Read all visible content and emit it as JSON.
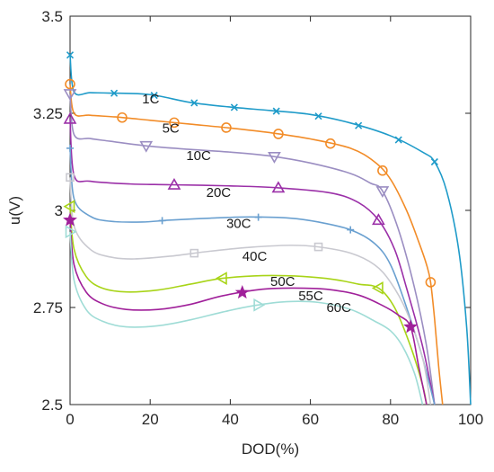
{
  "chart_data": {
    "type": "line",
    "xlabel": "DOD(%)",
    "ylabel": "u(V)",
    "xlim": [
      0,
      100
    ],
    "ylim": [
      2.5,
      3.5
    ],
    "xticks": [
      "0",
      "20",
      "40",
      "60",
      "80",
      "100"
    ],
    "yticks": [
      "2.5",
      "2.75",
      "3",
      "3.25",
      "3.5"
    ],
    "grid": false,
    "series": [
      {
        "name": "1C",
        "color": "#1f9bc9",
        "marker": "x",
        "points": [
          [
            0,
            3.4
          ],
          [
            1,
            3.305
          ],
          [
            5,
            3.303
          ],
          [
            10,
            3.302
          ],
          [
            20,
            3.298
          ],
          [
            30,
            3.278
          ],
          [
            40,
            3.266
          ],
          [
            50,
            3.257
          ],
          [
            60,
            3.247
          ],
          [
            70,
            3.225
          ],
          [
            80,
            3.192
          ],
          [
            88,
            3.15
          ],
          [
            91,
            3.125
          ],
          [
            94,
            3.05
          ],
          [
            97,
            2.9
          ],
          [
            99,
            2.7
          ],
          [
            100,
            2.5
          ]
        ]
      },
      {
        "name": "5C",
        "color": "#f28c28",
        "marker": "circle",
        "points": [
          [
            0,
            3.325
          ],
          [
            1,
            3.25
          ],
          [
            5,
            3.245
          ],
          [
            12,
            3.24
          ],
          [
            20,
            3.232
          ],
          [
            30,
            3.222
          ],
          [
            40,
            3.212
          ],
          [
            50,
            3.2
          ],
          [
            60,
            3.184
          ],
          [
            70,
            3.16
          ],
          [
            76,
            3.125
          ],
          [
            80,
            3.08
          ],
          [
            84,
            3.0
          ],
          [
            87,
            2.92
          ],
          [
            89,
            2.86
          ],
          [
            90,
            2.815
          ],
          [
            91,
            2.72
          ],
          [
            92,
            2.6
          ],
          [
            93,
            2.5
          ]
        ]
      },
      {
        "name": "10C",
        "color": "#9b8ec2",
        "marker": "triangle-down",
        "points": [
          [
            0,
            3.3
          ],
          [
            1,
            3.195
          ],
          [
            5,
            3.185
          ],
          [
            10,
            3.178
          ],
          [
            20,
            3.165
          ],
          [
            30,
            3.157
          ],
          [
            40,
            3.15
          ],
          [
            50,
            3.14
          ],
          [
            60,
            3.122
          ],
          [
            70,
            3.095
          ],
          [
            75,
            3.07
          ],
          [
            78,
            3.05
          ],
          [
            82,
            2.95
          ],
          [
            86,
            2.8
          ],
          [
            89,
            2.65
          ],
          [
            91,
            2.5
          ]
        ]
      },
      {
        "name": "20C",
        "color": "#9b30a8",
        "marker": "triangle-up",
        "points": [
          [
            0,
            3.235
          ],
          [
            1,
            3.09
          ],
          [
            5,
            3.075
          ],
          [
            15,
            3.068
          ],
          [
            25,
            3.066
          ],
          [
            40,
            3.063
          ],
          [
            52,
            3.058
          ],
          [
            65,
            3.045
          ],
          [
            72,
            3.02
          ],
          [
            77,
            2.975
          ],
          [
            81,
            2.9
          ],
          [
            84,
            2.8
          ],
          [
            88,
            2.65
          ],
          [
            91,
            2.5
          ]
        ]
      },
      {
        "name": "30C",
        "color": "#6aa0d0",
        "marker": "plus",
        "points": [
          [
            0,
            3.16
          ],
          [
            1,
            3.03
          ],
          [
            5,
            2.985
          ],
          [
            10,
            2.972
          ],
          [
            18,
            2.97
          ],
          [
            25,
            2.975
          ],
          [
            35,
            2.98
          ],
          [
            45,
            2.983
          ],
          [
            55,
            2.98
          ],
          [
            62,
            2.97
          ],
          [
            70,
            2.95
          ],
          [
            76,
            2.915
          ],
          [
            80,
            2.86
          ],
          [
            84,
            2.75
          ],
          [
            88,
            2.62
          ],
          [
            91,
            2.5
          ]
        ]
      },
      {
        "name": "40C",
        "color": "#c9c9d0",
        "marker": "square",
        "points": [
          [
            0,
            3.085
          ],
          [
            1,
            2.96
          ],
          [
            5,
            2.9
          ],
          [
            10,
            2.88
          ],
          [
            16,
            2.875
          ],
          [
            25,
            2.882
          ],
          [
            35,
            2.895
          ],
          [
            45,
            2.905
          ],
          [
            55,
            2.91
          ],
          [
            62,
            2.906
          ],
          [
            70,
            2.89
          ],
          [
            76,
            2.86
          ],
          [
            80,
            2.815
          ],
          [
            84,
            2.74
          ],
          [
            88,
            2.62
          ],
          [
            90,
            2.5
          ]
        ]
      },
      {
        "name": "50C",
        "color": "#a8d418",
        "marker": "triangle-left",
        "points": [
          [
            0,
            3.01
          ],
          [
            1,
            2.9
          ],
          [
            4,
            2.83
          ],
          [
            8,
            2.8
          ],
          [
            14,
            2.79
          ],
          [
            22,
            2.795
          ],
          [
            30,
            2.81
          ],
          [
            38,
            2.825
          ],
          [
            48,
            2.832
          ],
          [
            58,
            2.83
          ],
          [
            66,
            2.822
          ],
          [
            72,
            2.81
          ],
          [
            77,
            2.8
          ],
          [
            81,
            2.75
          ],
          [
            85,
            2.65
          ],
          [
            88,
            2.55
          ],
          [
            89,
            2.5
          ]
        ]
      },
      {
        "name": "55C",
        "color": "#a0209a",
        "marker": "star",
        "points": [
          [
            0,
            2.975
          ],
          [
            1,
            2.86
          ],
          [
            4,
            2.79
          ],
          [
            8,
            2.76
          ],
          [
            14,
            2.745
          ],
          [
            22,
            2.745
          ],
          [
            30,
            2.758
          ],
          [
            38,
            2.78
          ],
          [
            48,
            2.797
          ],
          [
            56,
            2.8
          ],
          [
            64,
            2.797
          ],
          [
            72,
            2.782
          ],
          [
            78,
            2.755
          ],
          [
            82,
            2.73
          ],
          [
            85,
            2.7
          ],
          [
            87,
            2.6
          ],
          [
            89,
            2.5
          ]
        ]
      },
      {
        "name": "60C",
        "color": "#9fdcd6",
        "marker": "triangle-right",
        "points": [
          [
            0,
            2.945
          ],
          [
            1,
            2.82
          ],
          [
            4,
            2.745
          ],
          [
            8,
            2.715
          ],
          [
            14,
            2.7
          ],
          [
            22,
            2.703
          ],
          [
            30,
            2.718
          ],
          [
            38,
            2.738
          ],
          [
            46,
            2.755
          ],
          [
            54,
            2.765
          ],
          [
            62,
            2.763
          ],
          [
            70,
            2.745
          ],
          [
            76,
            2.715
          ],
          [
            80,
            2.69
          ],
          [
            83,
            2.65
          ],
          [
            86,
            2.58
          ],
          [
            88,
            2.5
          ]
        ]
      }
    ],
    "marker_x": [
      [
        0,
        11,
        21,
        31,
        41,
        51.5,
        62,
        72,
        82,
        91
      ],
      [
        0,
        13,
        26,
        39,
        52,
        65,
        78,
        90
      ],
      [
        0,
        19,
        51,
        78
      ],
      [
        0,
        26,
        52,
        77
      ],
      [
        0,
        23,
        47,
        70
      ],
      [
        0,
        31,
        62
      ],
      [
        0,
        38,
        77
      ],
      [
        0,
        43,
        85
      ],
      [
        0,
        47
      ]
    ],
    "label_positions": [
      [
        18,
        3.275
      ],
      [
        23,
        3.2
      ],
      [
        29,
        3.13
      ],
      [
        34,
        3.035
      ],
      [
        39,
        2.955
      ],
      [
        43,
        2.87
      ],
      [
        50,
        2.805
      ],
      [
        57,
        2.768
      ],
      [
        64,
        2.738
      ]
    ]
  }
}
